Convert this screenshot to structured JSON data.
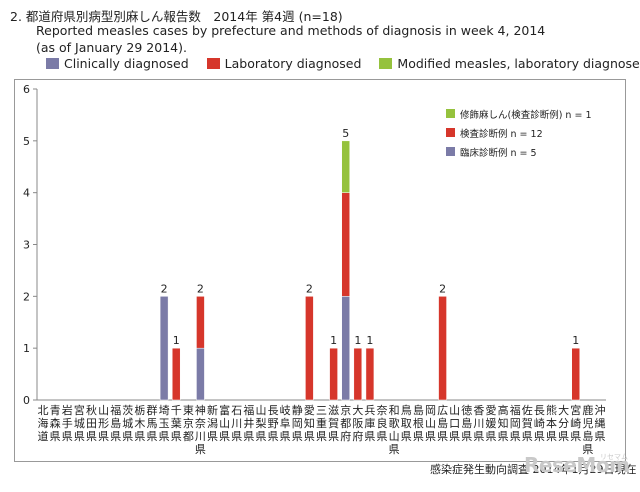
{
  "header": {
    "line1": "2.  都道府県別病型別麻しん報告数　2014年 第4週  (n=18)",
    "line2": "Reported measles cases by prefecture and methods of diagnosis in week 4, 2014",
    "line3": "(as of  January 29 2014)."
  },
  "top_legend": [
    {
      "label": "Clinically diagnosed",
      "color": "#7b7ba7"
    },
    {
      "label": "Laboratory diagnosed",
      "color": "#d6362b"
    },
    {
      "label": "Modified measles, laboratory diagnosed",
      "color": "#95c23d"
    }
  ],
  "source_note": "感染症発生動向調査 2014年1月29日現在",
  "watermark": {
    "text": "ReseMom",
    "sub": "リセマム"
  },
  "chart_data": {
    "type": "bar",
    "stacked": true,
    "ylim": [
      0,
      6
    ],
    "yticks": [
      0,
      1,
      2,
      3,
      4,
      5,
      6
    ],
    "grid": false,
    "legend_position": "top-right (inside plot)",
    "categories": [
      "北海道",
      "青森県",
      "岩手県",
      "宮城県",
      "秋田県",
      "山形県",
      "福島県",
      "茨城県",
      "栃木県",
      "群馬県",
      "埼玉県",
      "千葉県",
      "東京都",
      "神奈川県",
      "新潟県",
      "富山県",
      "石川県",
      "福井県",
      "山梨県",
      "長野県",
      "岐阜県",
      "静岡県",
      "愛知県",
      "三重県",
      "滋賀県",
      "京都府",
      "大阪府",
      "兵庫県",
      "奈良県",
      "和歌山県",
      "鳥取県",
      "島根県",
      "岡山県",
      "広島県",
      "山口県",
      "徳島県",
      "香川県",
      "愛媛県",
      "高知県",
      "福岡県",
      "佐賀県",
      "長崎県",
      "熊本県",
      "大分県",
      "宮崎県",
      "鹿児島県",
      "沖縄県"
    ],
    "series": [
      {
        "name": "臨床診断例 n = 5",
        "color": "#7b7ba7",
        "values": [
          0,
          0,
          0,
          0,
          0,
          0,
          0,
          0,
          0,
          0,
          2,
          0,
          0,
          1,
          0,
          0,
          0,
          0,
          0,
          0,
          0,
          0,
          0,
          0,
          0,
          2,
          0,
          0,
          0,
          0,
          0,
          0,
          0,
          0,
          0,
          0,
          0,
          0,
          0,
          0,
          0,
          0,
          0,
          0,
          0,
          0,
          0
        ]
      },
      {
        "name": "検査診断例 n = 12",
        "color": "#d6362b",
        "values": [
          0,
          0,
          0,
          0,
          0,
          0,
          0,
          0,
          0,
          0,
          0,
          1,
          0,
          1,
          0,
          0,
          0,
          0,
          0,
          0,
          0,
          0,
          2,
          0,
          1,
          2,
          1,
          1,
          0,
          0,
          0,
          0,
          0,
          2,
          0,
          0,
          0,
          0,
          0,
          0,
          0,
          0,
          0,
          0,
          1,
          0,
          0
        ]
      },
      {
        "name": "修飾麻しん(検査診断例) n = 1",
        "color": "#95c23d",
        "values": [
          0,
          0,
          0,
          0,
          0,
          0,
          0,
          0,
          0,
          0,
          0,
          0,
          0,
          0,
          0,
          0,
          0,
          0,
          0,
          0,
          0,
          0,
          0,
          0,
          0,
          1,
          0,
          0,
          0,
          0,
          0,
          0,
          0,
          0,
          0,
          0,
          0,
          0,
          0,
          0,
          0,
          0,
          0,
          0,
          0,
          0,
          0
        ]
      }
    ],
    "totals_labels": [
      {
        "category": "埼玉県",
        "value": "2"
      },
      {
        "category": "千葉県",
        "value": "1"
      },
      {
        "category": "神奈川県",
        "value": "2"
      },
      {
        "category": "愛知県",
        "value": "2"
      },
      {
        "category": "滋賀県",
        "value": "1"
      },
      {
        "category": "京都府",
        "value": "5"
      },
      {
        "category": "大阪府",
        "value": "1"
      },
      {
        "category": "兵庫県",
        "value": "1"
      },
      {
        "category": "広島県",
        "value": "2"
      },
      {
        "category": "宮崎県",
        "value": "1"
      }
    ]
  }
}
